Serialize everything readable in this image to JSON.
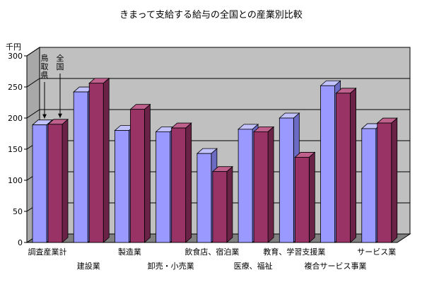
{
  "chart_data": {
    "type": "bar",
    "title": "きまって支給する給与の全国との産業別比較",
    "unit_label": "千円",
    "ylim": [
      0,
      300
    ],
    "yticks": [
      0,
      50,
      100,
      150,
      200,
      250,
      300
    ],
    "categories": [
      "調査産業計",
      "建設業",
      "製造業",
      "卸売・小売業",
      "飲食店、宿泊業",
      "医療、福祉",
      "教育、学習支援業",
      "複合サービス事業",
      "サービス業"
    ],
    "series": [
      {
        "name": "鳥取県",
        "values": [
          189,
          242,
          180,
          178,
          143,
          182,
          200,
          252,
          183
        ]
      },
      {
        "name": "全国",
        "values": [
          190,
          256,
          214,
          184,
          114,
          178,
          137,
          240,
          192
        ]
      }
    ],
    "grid": true,
    "legend": "inside-left-top",
    "colors": {
      "series0_front": "#9999ff",
      "series0_top": "#c2c2ff",
      "series0_side": "#6b6bc4",
      "series1_front": "#993366",
      "series1_top": "#c0608c",
      "series1_side": "#6b2247",
      "wall": "#c0c0c0",
      "floor": "#808080"
    }
  }
}
